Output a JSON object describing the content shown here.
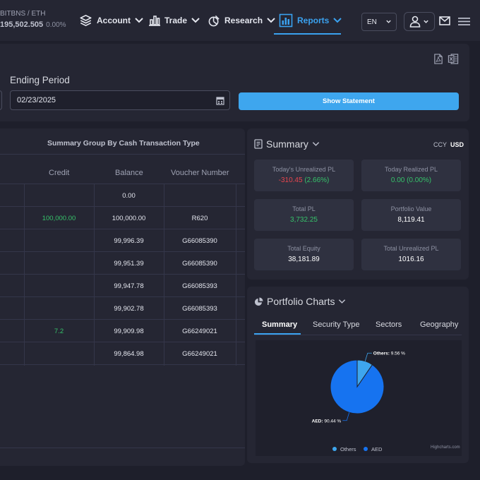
{
  "ticker": {
    "symbol": "BITBNS / ETH",
    "price": "195,502.505",
    "change": "0.00%"
  },
  "nav": {
    "account": "Account",
    "trade": "Trade",
    "research": "Research",
    "reports": "Reports"
  },
  "header": {
    "language": "EN"
  },
  "filter": {
    "ending_label": "Ending Period",
    "ending_date": "02/23/2025",
    "show_button": "Show Statement"
  },
  "table": {
    "title": "Summary Group By Cash Transaction Type",
    "columns": {
      "credit": "Credit",
      "balance": "Balance",
      "voucher": "Voucher Number"
    },
    "rows": [
      {
        "credit": "",
        "balance": "0.00",
        "voucher": ""
      },
      {
        "credit": "100,000.00",
        "balance": "100,000.00",
        "voucher": "R620"
      },
      {
        "credit": "",
        "balance": "99,996.39",
        "voucher": "G66085390"
      },
      {
        "credit": "",
        "balance": "99,951.39",
        "voucher": "G66085390"
      },
      {
        "credit": "",
        "balance": "99,947.78",
        "voucher": "G66085393"
      },
      {
        "credit": "",
        "balance": "99,902.78",
        "voucher": "G66085393"
      },
      {
        "credit": "7.2",
        "balance": "99,909.98",
        "voucher": "G66249021"
      },
      {
        "credit": "",
        "balance": "99,864.98",
        "voucher": "G66249021"
      }
    ]
  },
  "summary": {
    "title": "Summary",
    "ccy_label": "CCY",
    "ccy_value": "USD",
    "cards": {
      "unrealized": {
        "label": "Today's Unrealized PL",
        "value": "-310.45",
        "pct": "(2.66%)"
      },
      "realized": {
        "label": "Today Realized PL",
        "value": "0.00 (0.00%)"
      },
      "total_pl": {
        "label": "Total PL",
        "value": "3,732.25"
      },
      "portfolio_value": {
        "label": "Portfolio Value",
        "value": "8,119.41"
      },
      "total_equity": {
        "label": "Total Equity",
        "value": "38,181.89"
      },
      "total_unrealized": {
        "label": "Total Unrealized PL",
        "value": "1016.16"
      }
    }
  },
  "portfolio": {
    "title": "Portfolio Charts",
    "tabs": [
      "Summary",
      "Security Type",
      "Sectors",
      "Geography"
    ],
    "credits": "Highcharts.com"
  },
  "chart_data": {
    "type": "pie",
    "title": "",
    "slices": [
      {
        "name": "Others",
        "value": 9.56,
        "label": "Others: 9.56 %",
        "color": "#3ea6ee"
      },
      {
        "name": "AED",
        "value": 90.44,
        "label": "AED: 90.44 %",
        "color": "#1673f0"
      }
    ],
    "legend": [
      "Others",
      "AED"
    ],
    "legend_position": "bottom"
  }
}
